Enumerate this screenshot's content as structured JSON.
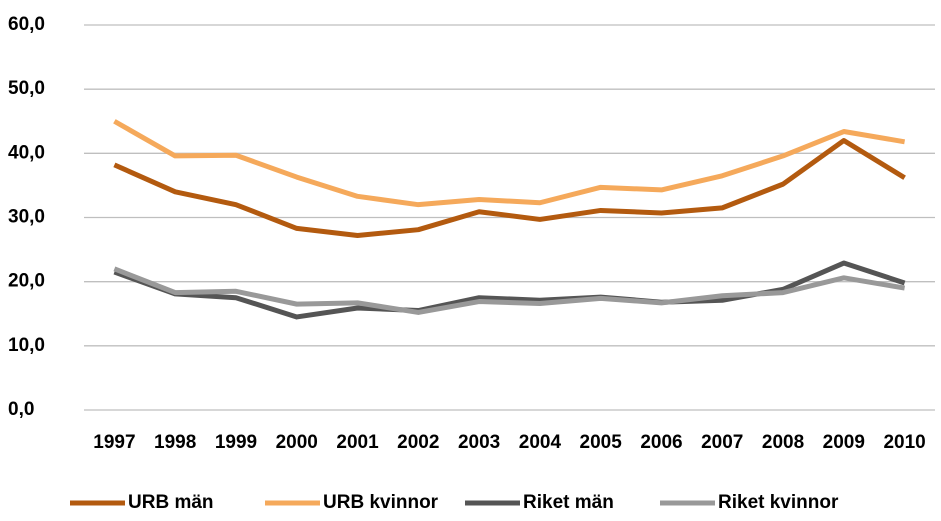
{
  "chart_data": {
    "type": "line",
    "categories": [
      "1997",
      "1998",
      "1999",
      "2000",
      "2001",
      "2002",
      "2003",
      "2004",
      "2005",
      "2006",
      "2007",
      "2008",
      "2009",
      "2010"
    ],
    "series": [
      {
        "name": "URB män",
        "color": "#b35a0f",
        "values": [
          38.2,
          34.0,
          32.0,
          28.3,
          27.2,
          28.1,
          30.9,
          29.7,
          31.1,
          30.7,
          31.5,
          35.2,
          42.0,
          36.2
        ]
      },
      {
        "name": "URB kvinnor",
        "color": "#f5a95b",
        "values": [
          45.0,
          39.6,
          39.7,
          36.3,
          33.3,
          32.0,
          32.8,
          32.3,
          34.7,
          34.3,
          36.5,
          39.6,
          43.4,
          41.8
        ]
      },
      {
        "name": "Riket män",
        "color": "#555555",
        "values": [
          21.5,
          18.1,
          17.5,
          14.5,
          15.9,
          15.5,
          17.5,
          17.1,
          17.6,
          16.8,
          17.1,
          18.8,
          22.9,
          19.8
        ]
      },
      {
        "name": "Riket kvinnor",
        "color": "#999999",
        "values": [
          22.0,
          18.3,
          18.5,
          16.5,
          16.7,
          15.2,
          16.9,
          16.6,
          17.4,
          16.7,
          17.8,
          18.3,
          20.6,
          19.0
        ]
      }
    ],
    "ylim": [
      0,
      60
    ],
    "yticks": [
      {
        "value": 0,
        "label": "0,0"
      },
      {
        "value": 10,
        "label": "10,0"
      },
      {
        "value": 20,
        "label": "20,0"
      },
      {
        "value": 30,
        "label": "30,0"
      },
      {
        "value": 40,
        "label": "40,0"
      },
      {
        "value": 50,
        "label": "50,0"
      },
      {
        "value": 60,
        "label": "60,0"
      }
    ],
    "grid": true,
    "legend": "bottom"
  }
}
